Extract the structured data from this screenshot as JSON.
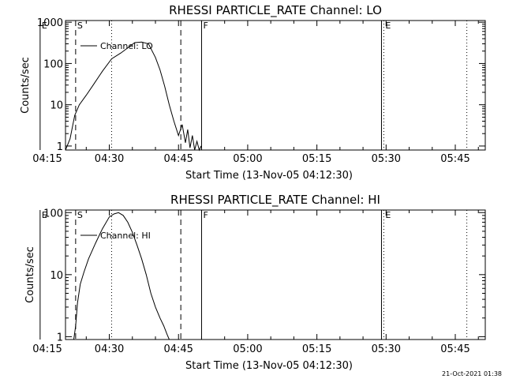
{
  "footer": {
    "timestamp": "21-Oct-2021 01:38"
  },
  "chart_data": [
    {
      "type": "line",
      "title": "RHESSI PARTICLE_RATE Channel: LO",
      "xlabel": "Start Time (13-Nov-05 04:12:30)",
      "ylabel": "Counts/sec",
      "yscale": "log",
      "xlim": [
        8,
        99
      ],
      "ylim": [
        0.8,
        1100
      ],
      "x_unit": "minutes after 04:12:30",
      "xticks": [
        2.5,
        17.5,
        32.5,
        47.5,
        62.5,
        77.5,
        92.5
      ],
      "xtick_labels": [
        "04:15",
        "04:30",
        "04:45",
        "05:00",
        "05:15",
        "05:30",
        "05:45"
      ],
      "yticks": [
        1,
        10,
        100,
        1000
      ],
      "ytick_labels": [
        "1",
        "10",
        "100",
        "1000"
      ],
      "legend": {
        "placement": "top-left",
        "entries": [
          "Channel: LO"
        ]
      },
      "markers": [
        {
          "label": "E",
          "x": 2.5,
          "style": "solid"
        },
        {
          "label": "S",
          "x": 10.2,
          "style": "dashed"
        },
        {
          "label": "",
          "x": 18.0,
          "style": "dotted"
        },
        {
          "label": "",
          "x": 33.0,
          "style": "dashed"
        },
        {
          "label": "F",
          "x": 37.5,
          "style": "solid"
        },
        {
          "label": "",
          "x": 76.5,
          "style": "solid"
        },
        {
          "label": "E",
          "x": 77.0,
          "style": "dotted"
        },
        {
          "label": "",
          "x": 95.0,
          "style": "dotted"
        }
      ],
      "series": [
        {
          "name": "Channel: LO",
          "x": [
            8.0,
            9.0,
            10.0,
            11.0,
            12.5,
            14.0,
            16.0,
            18.0,
            20.0,
            21.5,
            23.0,
            24.5,
            26.0,
            27.5,
            28.5,
            29.5,
            30.5,
            31.5,
            32.5,
            33.3,
            34.0,
            34.5,
            35.0,
            35.5,
            36.0,
            36.5,
            37.0,
            37.4
          ],
          "y": [
            0.8,
            1.5,
            5.5,
            10,
            17,
            30,
            65,
            130,
            180,
            240,
            320,
            330,
            300,
            140,
            70,
            28,
            10,
            4,
            1.8,
            3.3,
            1.2,
            2.5,
            0.9,
            1.8,
            0.8,
            1.3,
            0.8,
            1.0
          ]
        }
      ]
    },
    {
      "type": "line",
      "title": "RHESSI PARTICLE_RATE Channel: HI",
      "xlabel": "Start Time (13-Nov-05 04:12:30)",
      "ylabel": "Counts/sec",
      "yscale": "log",
      "xlim": [
        8,
        99
      ],
      "ylim": [
        0.9,
        110
      ],
      "x_unit": "minutes after 04:12:30",
      "xticks": [
        2.5,
        17.5,
        32.5,
        47.5,
        62.5,
        77.5,
        92.5
      ],
      "xtick_labels": [
        "04:15",
        "04:30",
        "04:45",
        "05:00",
        "05:15",
        "05:30",
        "05:45"
      ],
      "yticks": [
        1,
        10,
        100
      ],
      "ytick_labels": [
        "1",
        "10",
        "100"
      ],
      "legend": {
        "placement": "top-left",
        "entries": [
          "Channel: HI"
        ]
      },
      "markers": [
        {
          "label": "E",
          "x": 2.5,
          "style": "solid"
        },
        {
          "label": "S",
          "x": 10.2,
          "style": "dashed"
        },
        {
          "label": "",
          "x": 18.0,
          "style": "dotted"
        },
        {
          "label": "",
          "x": 33.0,
          "style": "dashed"
        },
        {
          "label": "F",
          "x": 37.5,
          "style": "solid"
        },
        {
          "label": "",
          "x": 76.5,
          "style": "solid"
        },
        {
          "label": "E",
          "x": 77.0,
          "style": "dotted"
        },
        {
          "label": "",
          "x": 95.0,
          "style": "dotted"
        }
      ],
      "series": [
        {
          "name": "Channel: HI",
          "x": [
            9.8,
            10.2,
            10.6,
            11.2,
            12.0,
            13.0,
            14.5,
            16.0,
            17.5,
            18.5,
            19.5,
            20.5,
            21.5,
            22.5,
            23.5,
            24.5,
            25.5,
            26.5,
            27.5,
            28.5,
            29.3,
            30.0,
            30.5
          ],
          "y": [
            0.9,
            1.5,
            3.5,
            7,
            11,
            18,
            32,
            55,
            85,
            95,
            100,
            90,
            70,
            48,
            30,
            18,
            10,
            5,
            3,
            2,
            1.5,
            1.1,
            0.9
          ]
        }
      ]
    }
  ]
}
